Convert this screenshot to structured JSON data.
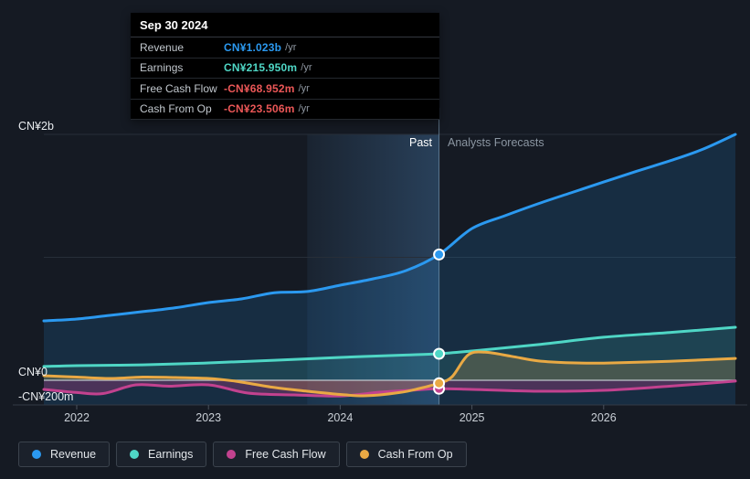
{
  "page": {
    "background": "#151a23"
  },
  "tooltip": {
    "date": "Sep 30 2024",
    "rows": [
      {
        "label": "Revenue",
        "value": "CN¥1.023b",
        "suffix": "/yr",
        "value_color": "#2b99f0"
      },
      {
        "label": "Earnings",
        "value": "CN¥215.950m",
        "suffix": "/yr",
        "value_color": "#4fd6c5"
      },
      {
        "label": "Free Cash Flow",
        "value": "-CN¥68.952m",
        "suffix": "/yr",
        "value_color": "#eb5757"
      },
      {
        "label": "Cash From Op",
        "value": "-CN¥23.506m",
        "suffix": "/yr",
        "value_color": "#eb5757"
      }
    ]
  },
  "legend": {
    "items": [
      {
        "label": "Revenue",
        "color": "#2b99f0"
      },
      {
        "label": "Earnings",
        "color": "#4fd6c5"
      },
      {
        "label": "Free Cash Flow",
        "color": "#c2428f"
      },
      {
        "label": "Cash From Op",
        "color": "#e9a944"
      }
    ]
  },
  "chart_data": {
    "type": "line",
    "unit": "CN¥ millions per year",
    "x_range": [
      2021.75,
      2027.0
    ],
    "x_ticks": [
      2022,
      2023,
      2024,
      2025,
      2026
    ],
    "y_ticks": [
      {
        "value": 2000,
        "label": "CN¥2b"
      },
      {
        "value": 0,
        "label": "CN¥0"
      },
      {
        "value": -200,
        "label": "-CN¥200m"
      }
    ],
    "grid_values": [
      2000,
      1000
    ],
    "past_cutoff": 2024.75,
    "band_range": [
      2023.75,
      2024.75
    ],
    "labels": {
      "past": "Past",
      "forecast": "Analysts Forecasts"
    },
    "colors": {
      "zero_line": "#c6cbd1",
      "grid_line": "#272e38",
      "axis_line": "#333b45",
      "divider": "#8fb3cf",
      "band": "#5ba3e8"
    },
    "series": [
      {
        "name": "Revenue",
        "color": "#2b99f0",
        "fill": "rgba(36,132,212,0.18)",
        "fill_to": "bottom",
        "points": [
          [
            2021.75,
            483
          ],
          [
            2022,
            498
          ],
          [
            2022.25,
            528
          ],
          [
            2022.5,
            558
          ],
          [
            2022.75,
            590
          ],
          [
            2023,
            632
          ],
          [
            2023.25,
            662
          ],
          [
            2023.5,
            712
          ],
          [
            2023.75,
            722
          ],
          [
            2024,
            773
          ],
          [
            2024.25,
            825
          ],
          [
            2024.5,
            892
          ],
          [
            2024.75,
            1023
          ],
          [
            2025,
            1234
          ],
          [
            2025.25,
            1338
          ],
          [
            2025.5,
            1435
          ],
          [
            2025.75,
            1524
          ],
          [
            2026,
            1613
          ],
          [
            2026.25,
            1700
          ],
          [
            2026.5,
            1784
          ],
          [
            2026.75,
            1878
          ],
          [
            2027,
            2000
          ]
        ]
      },
      {
        "name": "Earnings",
        "color": "#4fd6c5",
        "fill": "rgba(79,214,197,0.13)",
        "fill_to": "zero",
        "points": [
          [
            2021.75,
            112
          ],
          [
            2022,
            119
          ],
          [
            2022.5,
            126
          ],
          [
            2023,
            141
          ],
          [
            2023.5,
            163
          ],
          [
            2024,
            186
          ],
          [
            2024.5,
            205
          ],
          [
            2024.75,
            215.95
          ],
          [
            2025,
            238
          ],
          [
            2025.5,
            290
          ],
          [
            2026,
            350
          ],
          [
            2026.5,
            389
          ],
          [
            2027,
            431
          ]
        ]
      },
      {
        "name": "Free Cash Flow",
        "color": "#c2428f",
        "fill": "rgba(194,66,143,0.30)",
        "fill_to": "zero",
        "points": [
          [
            2021.75,
            -74
          ],
          [
            2022,
            -100
          ],
          [
            2022.2,
            -108
          ],
          [
            2022.45,
            -37
          ],
          [
            2022.7,
            -48
          ],
          [
            2023,
            -37
          ],
          [
            2023.3,
            -104
          ],
          [
            2023.65,
            -119
          ],
          [
            2024,
            -128
          ],
          [
            2024.3,
            -97
          ],
          [
            2024.55,
            -80
          ],
          [
            2024.75,
            -68.952
          ],
          [
            2025,
            -74
          ],
          [
            2025.5,
            -89
          ],
          [
            2026,
            -82
          ],
          [
            2026.5,
            -48
          ],
          [
            2027,
            -7
          ]
        ]
      },
      {
        "name": "Cash From Op",
        "color": "#e9a944",
        "fill": "rgba(233,169,68,0.20)",
        "fill_to": "zero",
        "points": [
          [
            2021.75,
            37
          ],
          [
            2022,
            26
          ],
          [
            2022.25,
            15
          ],
          [
            2022.5,
            26
          ],
          [
            2022.75,
            22
          ],
          [
            2023,
            15
          ],
          [
            2023.2,
            -7
          ],
          [
            2023.5,
            -59
          ],
          [
            2023.75,
            -89
          ],
          [
            2024,
            -115
          ],
          [
            2024.2,
            -126
          ],
          [
            2024.45,
            -100
          ],
          [
            2024.6,
            -67
          ],
          [
            2024.75,
            -23.506
          ],
          [
            2024.85,
            30
          ],
          [
            2024.97,
            205
          ],
          [
            2025.1,
            228
          ],
          [
            2025.3,
            195
          ],
          [
            2025.5,
            158
          ],
          [
            2025.75,
            142
          ],
          [
            2026,
            140
          ],
          [
            2026.5,
            155
          ],
          [
            2027,
            178
          ]
        ]
      }
    ]
  }
}
